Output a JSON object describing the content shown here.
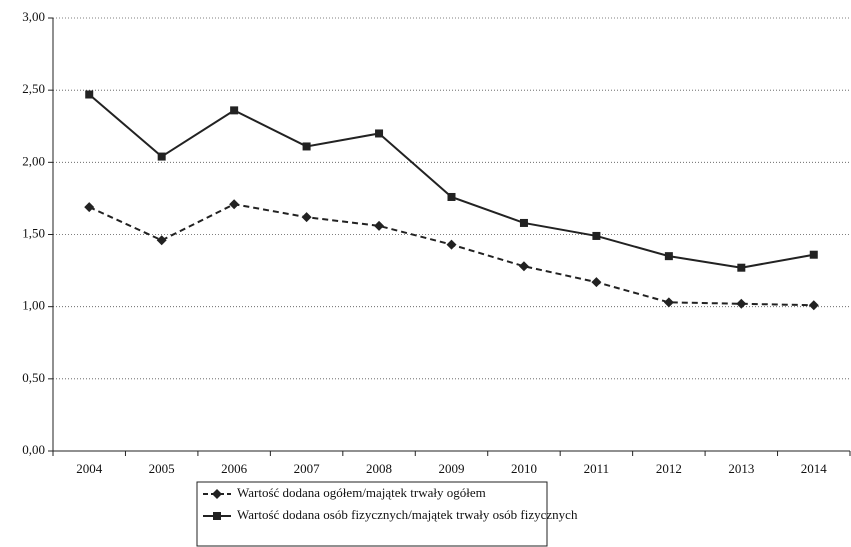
{
  "chart_data": {
    "type": "line",
    "categories": [
      "2004",
      "2005",
      "2006",
      "2007",
      "2008",
      "2009",
      "2010",
      "2011",
      "2012",
      "2013",
      "2014"
    ],
    "series": [
      {
        "name": "Wartość dodana ogółem/majątek trwały ogółem",
        "color": "#222222",
        "dash": "dashed",
        "marker": "diamond",
        "values": [
          1.69,
          1.46,
          1.71,
          1.62,
          1.56,
          1.43,
          1.28,
          1.17,
          1.03,
          1.02,
          1.01
        ]
      },
      {
        "name": "Wartość dodana osób fizycznych/majątek trwały osób fizycznych",
        "color": "#222222",
        "dash": "solid",
        "marker": "square",
        "values": [
          2.47,
          2.04,
          2.36,
          2.11,
          2.2,
          1.76,
          1.58,
          1.49,
          1.35,
          1.27,
          1.36
        ]
      }
    ],
    "ylim": [
      0,
      3
    ],
    "yticks": [
      {
        "value": 0,
        "label": "0,00"
      },
      {
        "value": 0.5,
        "label": "0,50"
      },
      {
        "value": 1,
        "label": "1,00"
      },
      {
        "value": 1.5,
        "label": "1,50"
      },
      {
        "value": 2,
        "label": "2,00"
      },
      {
        "value": 2.5,
        "label": "2,50"
      },
      {
        "value": 3,
        "label": "3,00"
      }
    ],
    "grid": true,
    "legend": "bottom"
  }
}
